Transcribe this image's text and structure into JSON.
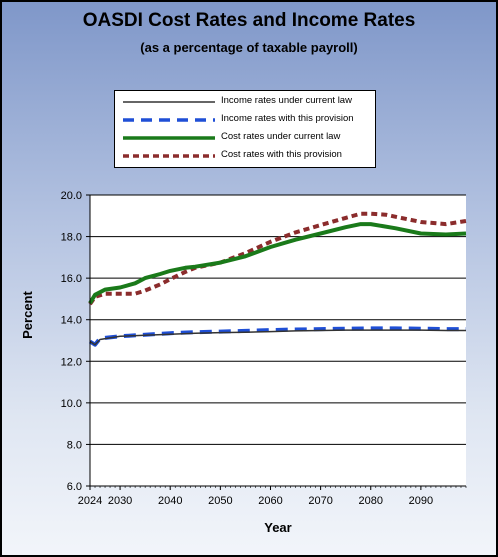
{
  "chart_data": {
    "type": "line",
    "title": "OASDI Cost Rates and Income Rates",
    "subtitle": "(as a percentage of taxable payroll)",
    "xlabel": "Year",
    "ylabel": "Percent",
    "xlim": [
      2024,
      2099
    ],
    "ylim": [
      6.0,
      20.0
    ],
    "y_ticks": [
      "6.0",
      "8.0",
      "10.0",
      "12.0",
      "14.0",
      "16.0",
      "18.0",
      "20.0"
    ],
    "x_ticks": [
      "2024",
      "2030",
      "2040",
      "2050",
      "2060",
      "2070",
      "2080",
      "2090"
    ],
    "grid": "horizontal",
    "legend_position": "top",
    "series": [
      {
        "name": "Income rates under current law",
        "color": "#333333",
        "style": "solid-thin",
        "x": [
          2024,
          2025,
          2026,
          2030,
          2035,
          2040,
          2045,
          2050,
          2055,
          2060,
          2065,
          2070,
          2075,
          2080,
          2085,
          2090,
          2095,
          2099
        ],
        "values": [
          12.95,
          12.8,
          13.05,
          13.2,
          13.25,
          13.3,
          13.35,
          13.38,
          13.4,
          13.43,
          13.46,
          13.48,
          13.5,
          13.5,
          13.5,
          13.5,
          13.48,
          13.48
        ]
      },
      {
        "name": "Income rates with this provision",
        "color": "#1f4fd6",
        "style": "dashed",
        "x": [
          2024,
          2025,
          2026,
          2030,
          2035,
          2040,
          2045,
          2050,
          2055,
          2060,
          2065,
          2070,
          2075,
          2080,
          2085,
          2090,
          2095,
          2099
        ],
        "values": [
          12.95,
          12.8,
          13.1,
          13.2,
          13.28,
          13.35,
          13.4,
          13.43,
          13.46,
          13.5,
          13.53,
          13.55,
          13.57,
          13.58,
          13.58,
          13.57,
          13.55,
          13.55
        ]
      },
      {
        "name": "Cost rates under current law",
        "color": "#1a7a1a",
        "style": "solid-thick",
        "x": [
          2024,
          2025,
          2027,
          2030,
          2033,
          2035,
          2038,
          2040,
          2043,
          2045,
          2050,
          2055,
          2060,
          2065,
          2070,
          2075,
          2078,
          2080,
          2085,
          2090,
          2095,
          2099
        ],
        "values": [
          14.8,
          15.2,
          15.45,
          15.55,
          15.75,
          16.0,
          16.2,
          16.35,
          16.5,
          16.55,
          16.75,
          17.05,
          17.5,
          17.85,
          18.15,
          18.45,
          18.6,
          18.6,
          18.4,
          18.15,
          18.1,
          18.15
        ]
      },
      {
        "name": "Cost rates with this provision",
        "color": "#8b2c2c",
        "style": "dashed-thick",
        "x": [
          2024,
          2025,
          2027,
          2030,
          2033,
          2035,
          2038,
          2040,
          2043,
          2045,
          2050,
          2055,
          2060,
          2065,
          2070,
          2075,
          2078,
          2080,
          2083,
          2085,
          2090,
          2095,
          2099
        ],
        "values": [
          14.75,
          15.1,
          15.25,
          15.25,
          15.25,
          15.4,
          15.7,
          15.95,
          16.3,
          16.5,
          16.75,
          17.2,
          17.75,
          18.2,
          18.55,
          18.9,
          19.1,
          19.1,
          19.05,
          18.95,
          18.7,
          18.6,
          18.75
        ]
      }
    ]
  }
}
